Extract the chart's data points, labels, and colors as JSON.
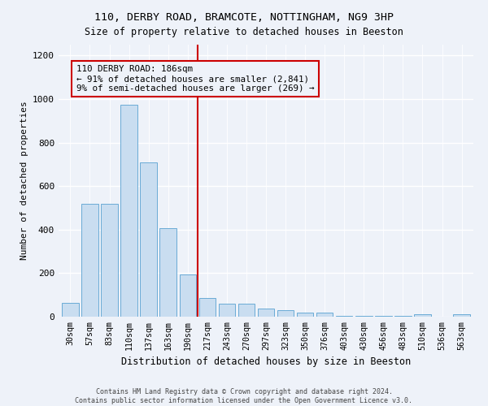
{
  "title1": "110, DERBY ROAD, BRAMCOTE, NOTTINGHAM, NG9 3HP",
  "title2": "Size of property relative to detached houses in Beeston",
  "xlabel": "Distribution of detached houses by size in Beeston",
  "ylabel": "Number of detached properties",
  "bar_color": "#c9ddf0",
  "bar_edge_color": "#6aabd6",
  "categories": [
    "30sqm",
    "57sqm",
    "83sqm",
    "110sqm",
    "137sqm",
    "163sqm",
    "190sqm",
    "217sqm",
    "243sqm",
    "270sqm",
    "297sqm",
    "323sqm",
    "350sqm",
    "376sqm",
    "403sqm",
    "430sqm",
    "456sqm",
    "483sqm",
    "510sqm",
    "536sqm",
    "563sqm"
  ],
  "values": [
    65,
    520,
    520,
    975,
    710,
    405,
    195,
    85,
    60,
    58,
    38,
    30,
    18,
    18,
    5,
    5,
    5,
    5,
    10,
    0,
    10
  ],
  "vline_x": 6.5,
  "vline_color": "#cc0000",
  "annotation_line1": "110 DERBY ROAD: 186sqm",
  "annotation_line2": "← 91% of detached houses are smaller (2,841)",
  "annotation_line3": "9% of semi-detached houses are larger (269) →",
  "ylim": [
    0,
    1250
  ],
  "yticks": [
    0,
    200,
    400,
    600,
    800,
    1000,
    1200
  ],
  "footer1": "Contains HM Land Registry data © Crown copyright and database right 2024.",
  "footer2": "Contains public sector information licensed under the Open Government Licence v3.0.",
  "bg_color": "#eef2f9"
}
